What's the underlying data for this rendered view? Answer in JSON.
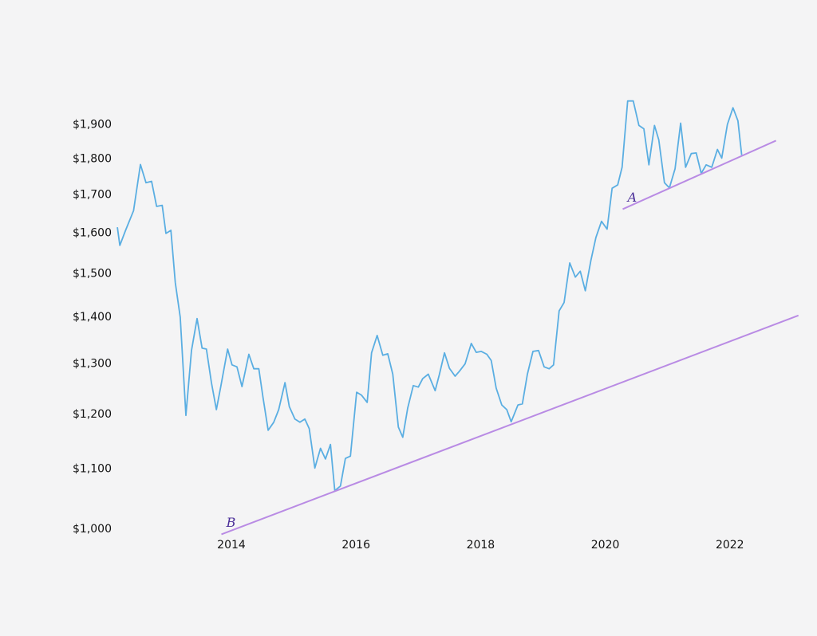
{
  "chart_data": {
    "type": "line",
    "log_y": true,
    "xlim": [
      2012.1,
      2023.2
    ],
    "xticks": [
      2014,
      2016,
      2018,
      2020,
      2022
    ],
    "ylim": [
      985,
      2000
    ],
    "yticks": [
      {
        "value": 1000,
        "label": "$1,000"
      },
      {
        "value": 1100,
        "label": "$1,100"
      },
      {
        "value": 1200,
        "label": "$1,200"
      },
      {
        "value": 1300,
        "label": "$1,300"
      },
      {
        "value": 1400,
        "label": "$1,400"
      },
      {
        "value": 1500,
        "label": "$1,500"
      },
      {
        "value": 1600,
        "label": "$1,600"
      },
      {
        "value": 1700,
        "label": "$1,700"
      },
      {
        "value": 1800,
        "label": "$1,800"
      },
      {
        "value": 1900,
        "label": "$1,900"
      }
    ],
    "series": [
      {
        "color": "#5aaee2",
        "x": [
          2012.17,
          2012.21,
          2012.3,
          2012.43,
          2012.54,
          2012.63,
          2012.72,
          2012.8,
          2012.89,
          2012.95,
          2013.03,
          2013.1,
          2013.18,
          2013.27,
          2013.36,
          2013.45,
          2013.53,
          2013.6,
          2013.68,
          2013.76,
          2013.83,
          2013.94,
          2014.01,
          2014.09,
          2014.17,
          2014.28,
          2014.36,
          2014.44,
          2014.51,
          2014.59,
          2014.68,
          2014.76,
          2014.86,
          2014.93,
          2015.02,
          2015.1,
          2015.18,
          2015.25,
          2015.34,
          2015.43,
          2015.51,
          2015.59,
          2015.66,
          2015.75,
          2015.83,
          2015.91,
          2016.01,
          2016.09,
          2016.18,
          2016.25,
          2016.34,
          2016.43,
          2016.51,
          2016.59,
          2016.68,
          2016.75,
          2016.83,
          2016.92,
          2017.0,
          2017.07,
          2017.16,
          2017.27,
          2017.34,
          2017.42,
          2017.5,
          2017.59,
          2017.66,
          2017.75,
          2017.85,
          2017.93,
          2018.01,
          2018.1,
          2018.17,
          2018.25,
          2018.34,
          2018.42,
          2018.49,
          2018.6,
          2018.67,
          2018.75,
          2018.84,
          2018.93,
          2019.02,
          2019.1,
          2019.17,
          2019.26,
          2019.34,
          2019.43,
          2019.52,
          2019.6,
          2019.68,
          2019.77,
          2019.85,
          2019.94,
          2020.03,
          2020.11,
          2020.2,
          2020.27,
          2020.36,
          2020.45,
          2020.54,
          2020.62,
          2020.7,
          2020.79,
          2020.86,
          2020.95,
          2021.03,
          2021.12,
          2021.21,
          2021.29,
          2021.38,
          2021.46,
          2021.54,
          2021.62,
          2021.71,
          2021.8,
          2021.87,
          2021.96,
          2022.05,
          2022.13,
          2022.19
        ],
        "values": [
          1615,
          1569,
          1606,
          1658,
          1784,
          1733,
          1737,
          1669,
          1672,
          1599,
          1607,
          1479,
          1400,
          1198,
          1328,
          1397,
          1333,
          1331,
          1262,
          1209,
          1254,
          1331,
          1298,
          1294,
          1254,
          1320,
          1290,
          1290,
          1231,
          1170,
          1185,
          1209,
          1262,
          1215,
          1191,
          1185,
          1191,
          1173,
          1102,
          1137,
          1118,
          1144,
          1063,
          1071,
          1119,
          1123,
          1243,
          1237,
          1223,
          1323,
          1360,
          1318,
          1321,
          1279,
          1176,
          1157,
          1212,
          1256,
          1253,
          1270,
          1279,
          1246,
          1279,
          1323,
          1291,
          1275,
          1285,
          1300,
          1343,
          1324,
          1326,
          1320,
          1307,
          1251,
          1218,
          1209,
          1186,
          1218,
          1220,
          1279,
          1326,
          1328,
          1294,
          1290,
          1298,
          1414,
          1433,
          1526,
          1492,
          1506,
          1460,
          1532,
          1589,
          1630,
          1610,
          1718,
          1727,
          1776,
          1973,
          1973,
          1898,
          1888,
          1783,
          1898,
          1855,
          1733,
          1719,
          1772,
          1905,
          1776,
          1815,
          1817,
          1759,
          1783,
          1776,
          1827,
          1802,
          1901,
          1952,
          1912,
          1811
        ]
      },
      {
        "color": "#b98be4",
        "label": "A",
        "x": [
          2020.28,
          2022.74
        ],
        "values": [
          1662,
          1853
        ]
      },
      {
        "color": "#b98be4",
        "label": "B",
        "x": [
          2013.84,
          2023.1
        ],
        "values": [
          992,
          1404
        ]
      }
    ]
  }
}
